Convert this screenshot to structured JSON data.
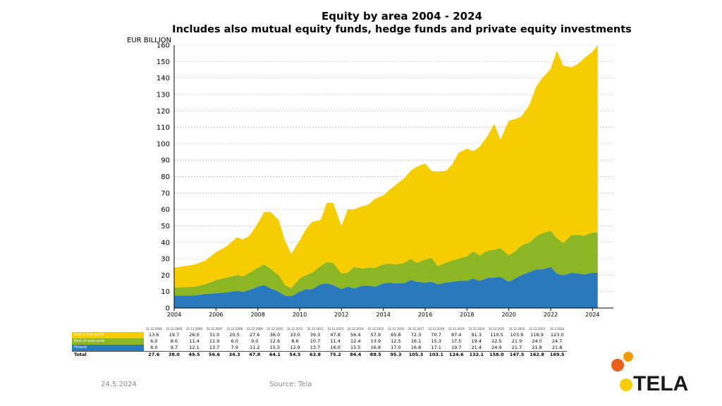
{
  "chart_data": {
    "type": "area",
    "title": "Equity by area 2004 - 2024",
    "subtitle": "Includes also mutual equity funds, hedge funds and private equity investments",
    "ylabel": "EUR BILLION",
    "ylim": [
      0,
      160
    ],
    "yticks": [
      0,
      10,
      20,
      30,
      40,
      50,
      60,
      70,
      80,
      90,
      100,
      110,
      120,
      130,
      140,
      150,
      160
    ],
    "xlim": [
      2004,
      2025
    ],
    "xticks": [
      2004,
      2006,
      2008,
      2010,
      2012,
      2014,
      2016,
      2018,
      2020,
      2022,
      2024
    ],
    "grid": true,
    "stacked": true,
    "x": [
      2004.0,
      2004.5,
      2005.0,
      2005.5,
      2006.0,
      2006.5,
      2007.0,
      2007.3,
      2007.6,
      2008.0,
      2008.3,
      2008.6,
      2009.0,
      2009.3,
      2009.6,
      2010.0,
      2010.3,
      2010.6,
      2011.0,
      2011.3,
      2011.6,
      2012.0,
      2012.3,
      2012.6,
      2013.0,
      2013.3,
      2013.6,
      2014.0,
      2014.3,
      2014.6,
      2015.0,
      2015.3,
      2015.6,
      2016.0,
      2016.3,
      2016.6,
      2017.0,
      2017.3,
      2017.6,
      2018.0,
      2018.3,
      2018.6,
      2019.0,
      2019.3,
      2019.6,
      2020.0,
      2020.3,
      2020.6,
      2021.0,
      2021.3,
      2021.6,
      2022.0,
      2022.3,
      2022.6,
      2023.0,
      2023.3,
      2023.6,
      2024.0,
      2024.25
    ],
    "series": [
      {
        "name": "Finland",
        "color": "#2b79bd",
        "values": [
          7.5,
          7.5,
          7.7,
          8.5,
          9.0,
          9.5,
          10.5,
          9.8,
          11.0,
          13.0,
          14.0,
          12.0,
          10.0,
          7.5,
          7.2,
          10.0,
          11.5,
          11.5,
          14.5,
          15.0,
          14.0,
          11.5,
          13.0,
          12.0,
          13.5,
          13.5,
          13.0,
          15.0,
          15.5,
          15.0,
          15.0,
          17.0,
          16.0,
          15.5,
          16.0,
          14.5,
          15.5,
          16.0,
          16.5,
          16.5,
          18.0,
          16.5,
          18.5,
          18.5,
          19.0,
          16.0,
          18.0,
          20.0,
          22.0,
          23.5,
          23.5,
          25.0,
          21.0,
          20.0,
          21.5,
          21.0,
          20.5,
          21.5,
          21.5
        ]
      },
      {
        "name": "Rest of euro area",
        "color": "#8db624",
        "values": [
          5.0,
          5.2,
          5.3,
          6.0,
          8.0,
          9.0,
          9.5,
          9.5,
          10.5,
          11.5,
          12.5,
          12.0,
          10.0,
          6.5,
          4.8,
          8.0,
          8.5,
          10.0,
          11.0,
          13.0,
          13.5,
          9.5,
          8.5,
          13.0,
          10.5,
          11.0,
          11.5,
          11.5,
          11.5,
          11.5,
          12.5,
          13.0,
          11.5,
          14.0,
          14.5,
          11.0,
          12.0,
          13.0,
          13.5,
          15.0,
          16.5,
          15.5,
          16.5,
          17.0,
          17.5,
          16.0,
          16.5,
          18.0,
          18.0,
          20.0,
          22.0,
          22.0,
          21.5,
          19.5,
          23.0,
          23.5,
          23.5,
          24.5,
          24.5
        ]
      },
      {
        "name": "Rest of the world",
        "color": "#f5cd00",
        "values": [
          12.0,
          12.8,
          13.5,
          14.5,
          17.0,
          19.0,
          23.0,
          22.5,
          22.5,
          27.0,
          32.0,
          34.5,
          33.5,
          27.0,
          21.0,
          23.0,
          28.0,
          31.0,
          28.0,
          36.0,
          36.5,
          29.0,
          38.5,
          35.0,
          38.0,
          38.5,
          42.0,
          42.0,
          45.0,
          48.5,
          51.5,
          53.5,
          58.5,
          58.5,
          53.0,
          57.5,
          56.0,
          58.5,
          64.5,
          65.5,
          61.0,
          66.0,
          70.0,
          76.5,
          66.0,
          82.0,
          80.5,
          78.5,
          84.0,
          91.0,
          94.5,
          98.5,
          114.0,
          108.0,
          102.0,
          104.0,
          108.0,
          110.0,
          114.0
        ]
      }
    ],
    "table": {
      "columns": [
        "31.12.2004",
        "31.12.2005",
        "31.12.2006",
        "31.12.2007",
        "31.12.2008",
        "31.12.2009",
        "31.12.2010",
        "31.12.2011",
        "31.12.2012",
        "31.12.2013",
        "31.12.2014",
        "31.12.2015",
        "31.12.2016",
        "31.12.2017",
        "31.12.2018",
        "31.12.2019",
        "31.12.2020",
        "31.12.2021",
        "31.12.2022",
        "31.12.2023",
        "31.3.2024"
      ],
      "rows": [
        {
          "label": "Rest of the world",
          "color": "#f5cd00",
          "values": [
            "13.6",
            "19.7",
            "26.0",
            "31.0",
            "20.5",
            "27.6",
            "36.0",
            "33.0",
            "39.3",
            "47.8",
            "56.4",
            "57.9",
            "65.8",
            "72.3",
            "70.7",
            "87.4",
            "91.3",
            "110.5",
            "103.9",
            "116.9",
            "123.0"
          ]
        },
        {
          "label": "Rest of euro area",
          "color": "#8db624",
          "values": [
            "6.0",
            "8.6",
            "11.4",
            "11.9",
            "6.0",
            "9.0",
            "12.6",
            "8.6",
            "10.7",
            "11.4",
            "12.4",
            "13.9",
            "12.5",
            "16.1",
            "15.3",
            "17.5",
            "19.4",
            "22.5",
            "21.9",
            "24.0",
            "24.7"
          ]
        },
        {
          "label": "Finland",
          "color": "#2b79bd",
          "values": [
            "8.0",
            "9.7",
            "12.1",
            "13.7",
            "7.9",
            "11.2",
            "15.5",
            "12.9",
            "13.7",
            "16.0",
            "15.5",
            "16.8",
            "17.0",
            "16.8",
            "17.1",
            "19.7",
            "21.4",
            "24.9",
            "21.7",
            "21.8",
            "21.8"
          ]
        },
        {
          "label": "Total",
          "color": "",
          "values": [
            "27.6",
            "38.0",
            "49.5",
            "56.6",
            "34.3",
            "47.8",
            "64.1",
            "54.5",
            "63.8",
            "75.2",
            "84.4",
            "88.5",
            "95.3",
            "105.3",
            "103.1",
            "124.6",
            "132.1",
            "158.0",
            "147.5",
            "162.8",
            "169.5"
          ]
        }
      ]
    }
  },
  "footer": {
    "date": "24.5.2024",
    "source": "Source: Tela"
  },
  "logo": {
    "text": "TELA",
    "colors": [
      "#e8601c",
      "#f29a00",
      "#f5cd00"
    ]
  }
}
